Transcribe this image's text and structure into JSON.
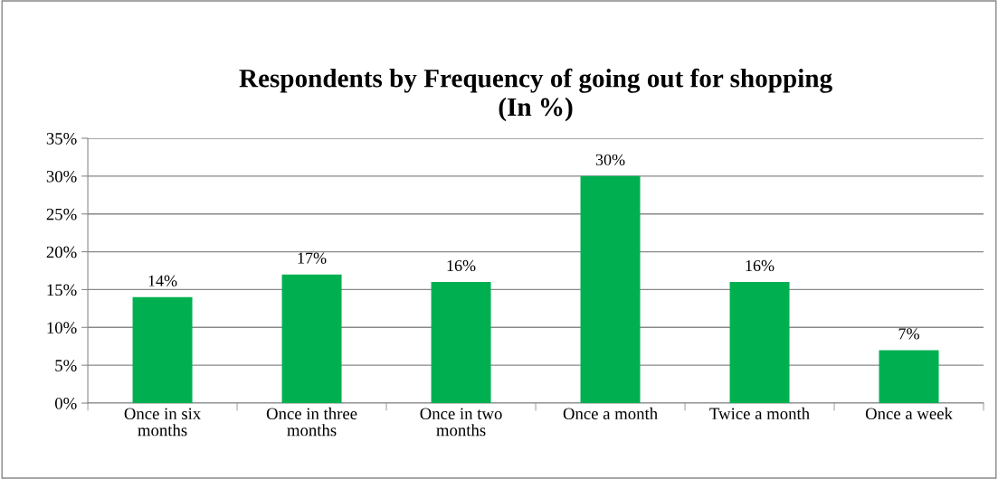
{
  "chart_data": {
    "type": "bar",
    "title": "Respondents by Frequency of going out for shopping\n(In %)",
    "categories": [
      "Once in six\nmonths",
      "Once in three\nmonths",
      "Once in two\nmonths",
      "Once a month",
      "Twice a month",
      "Once a week"
    ],
    "values": [
      14,
      17,
      16,
      30,
      16,
      7
    ],
    "value_labels": [
      "14%",
      "17%",
      "16%",
      "30%",
      "16%",
      "7%"
    ],
    "color": "#00b050",
    "ylim": [
      0,
      35
    ],
    "yticks": [
      {
        "value": 0,
        "label": "0%"
      },
      {
        "value": 5,
        "label": "5%"
      },
      {
        "value": 10,
        "label": "10%"
      },
      {
        "value": 15,
        "label": "15%"
      },
      {
        "value": 20,
        "label": "20%"
      },
      {
        "value": 25,
        "label": "25%"
      },
      {
        "value": 30,
        "label": "30%"
      },
      {
        "value": 35,
        "label": "35%"
      }
    ],
    "grid": "y",
    "legend": false
  }
}
